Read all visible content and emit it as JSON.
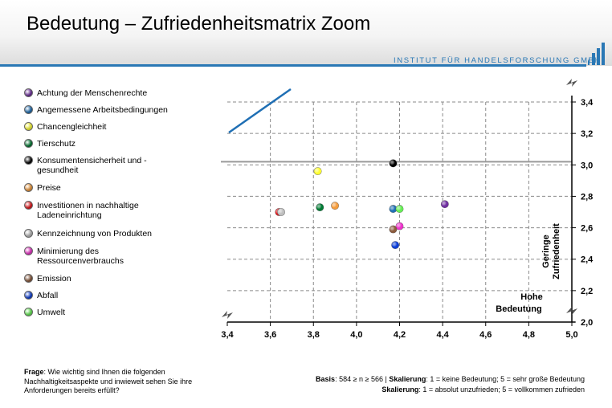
{
  "header": {
    "title": "Bedeutung – Zufriedenheitsmatrix Zoom",
    "org": "INSTITUT FÜR HANDELSFORSCHUNG GMBH"
  },
  "chart_data": {
    "type": "scatter",
    "xlim": [
      3.4,
      5.0
    ],
    "ylim": [
      2.0,
      3.4
    ],
    "x_ticks": [
      "3,4",
      "3,6",
      "3,8",
      "4,0",
      "4,2",
      "4,4",
      "4,6",
      "4,8",
      "5,0"
    ],
    "y_ticks": [
      "2,0",
      "2,2",
      "2,4",
      "2,6",
      "2,8",
      "3,0",
      "3,2",
      "3,4"
    ],
    "x_label_lines": [
      "Hohe",
      "Bedeutung"
    ],
    "y_label_lines": [
      "Geringe",
      "Zufriedenheit"
    ],
    "grid": "dashed",
    "reference_y": 3.02,
    "series": [
      {
        "name": "Achtung der Menschenrechte",
        "color": "#7030a0",
        "x": 4.41,
        "y": 2.75
      },
      {
        "name": "Angemessene Arbeitsbedingungen",
        "color": "#1f6fb4",
        "x": 4.17,
        "y": 2.72
      },
      {
        "name": "Chancengleichheit",
        "color": "#ffff33",
        "x": 3.82,
        "y": 2.96
      },
      {
        "name": "Tierschutz",
        "color": "#007a33",
        "x": 3.83,
        "y": 2.73
      },
      {
        "name": "Konsumentensicherheit und - gesundheit",
        "color": "#000000",
        "x": 4.17,
        "y": 3.01
      },
      {
        "name": "Preise",
        "color": "#f49c3c",
        "x": 3.9,
        "y": 2.74
      },
      {
        "name": "Investitionen in nachhaltige Ladeneinrichtung",
        "color": "#e8161b",
        "x": 3.64,
        "y": 2.7
      },
      {
        "name": "Kennzeichnung von Produkten",
        "color": "#bfbfbf",
        "x": 3.65,
        "y": 2.7
      },
      {
        "name": "Minimierung des Ressourcenverbrauchs",
        "color": "#ee33cc",
        "x": 4.2,
        "y": 2.61
      },
      {
        "name": "Emission",
        "color": "#8b5a3c",
        "x": 4.17,
        "y": 2.59
      },
      {
        "name": "Abfall",
        "color": "#0d3fd6",
        "x": 4.18,
        "y": 2.49
      },
      {
        "name": "Umwelt",
        "color": "#66ee55",
        "x": 4.2,
        "y": 2.72
      }
    ]
  },
  "footer": {
    "frage_label": "Frage",
    "frage_text": ": Wie wichtig sind Ihnen  die folgenden Nachhaltigkeitsaspekte und inwieweit sehen Sie ihre Anforderungen bereits erfüllt?",
    "basis_label": "Basis",
    "basis_text": ": 584 ≥ n ≥ 566  | ",
    "skal_label": "Skalierung",
    "skal1_text": ": 1 = keine Bedeutung; 5 = sehr große Bedeutung",
    "skal2_text": ": 1 = absolut unzufrieden; 5 = vollkommen zufrieden"
  }
}
